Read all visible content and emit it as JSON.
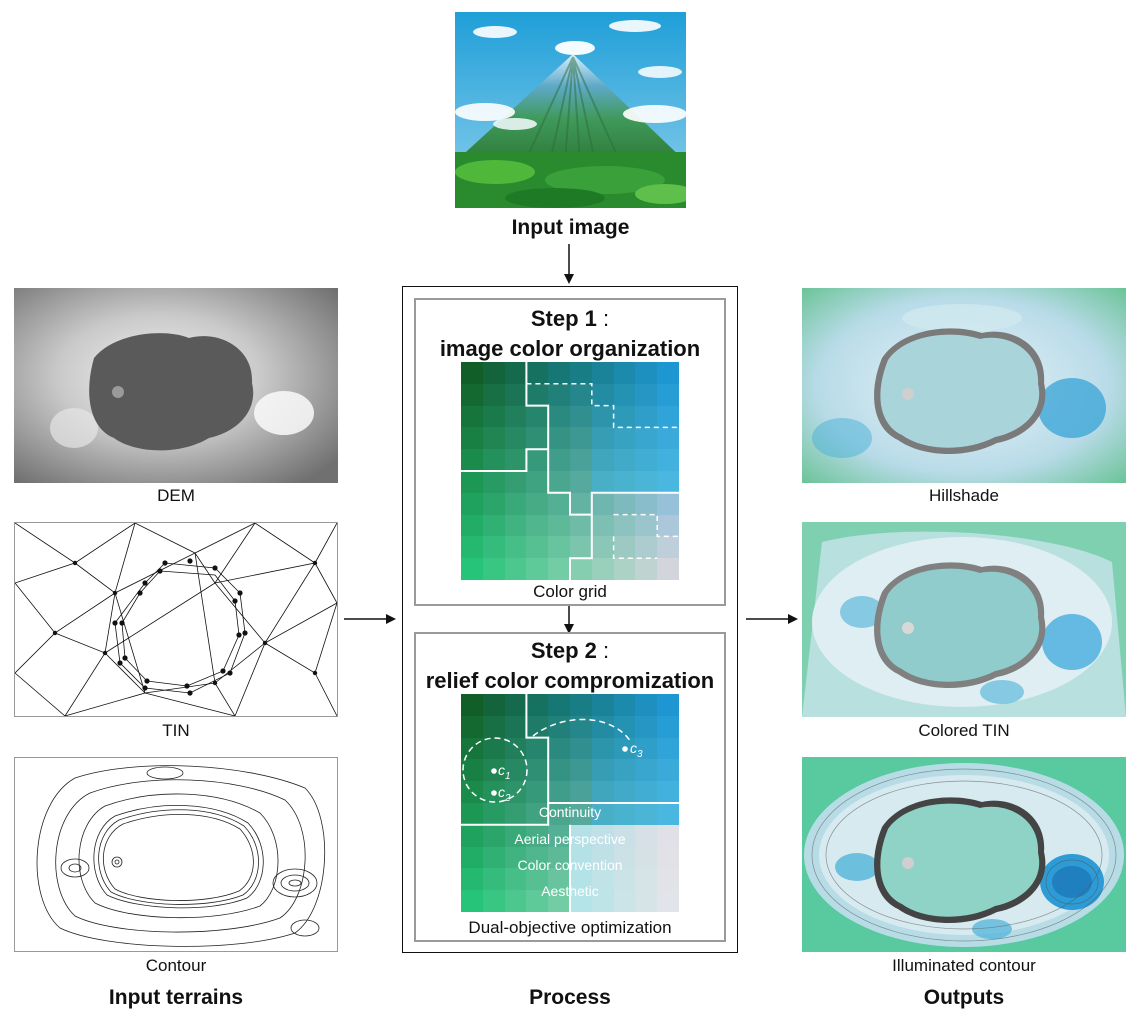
{
  "input_image": {
    "label": "Input image"
  },
  "input_terrains": {
    "heading": "Input terrains",
    "items": [
      {
        "label": "DEM"
      },
      {
        "label": "TIN"
      },
      {
        "label": "Contour"
      }
    ]
  },
  "process": {
    "heading": "Process",
    "step1": {
      "title_bold": "Step 1",
      "title_colon": " :",
      "subtitle": "image color organization",
      "caption": "Color grid"
    },
    "step2": {
      "title_bold": "Step 2",
      "title_colon": " :",
      "subtitle": "relief color compromization",
      "caption": "Dual-objective optimization",
      "points": [
        "c",
        "c",
        "c"
      ],
      "point_subs": [
        "1",
        "2",
        "3"
      ],
      "constraints": [
        "Continuity",
        "Aerial perspective",
        "Color convention",
        "Aesthetic"
      ]
    }
  },
  "outputs": {
    "heading": "Outputs",
    "items": [
      {
        "label": "Hillshade"
      },
      {
        "label": "Colored TIN"
      },
      {
        "label": "Illuminated contour"
      }
    ]
  },
  "colors": {
    "frame": "#111111",
    "step_border": "#9a9a9a",
    "crater_fill": "#a8d4da",
    "dem_crater": "#5a5a5a"
  }
}
